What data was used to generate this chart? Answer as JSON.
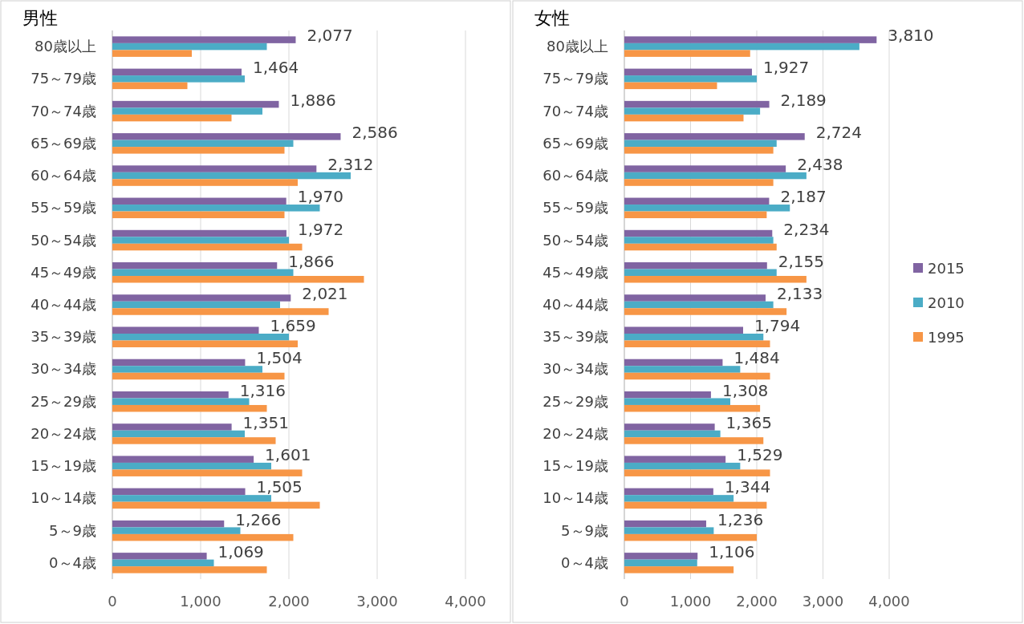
{
  "chart_data": [
    {
      "type": "bar",
      "orientation": "horizontal",
      "title": "男性",
      "categories": [
        "80歳以上",
        "75～79歳",
        "70～74歳",
        "65～69歳",
        "60～64歳",
        "55～59歳",
        "50～54歳",
        "45～49歳",
        "40～44歳",
        "35～39歳",
        "30～34歳",
        "25～29歳",
        "20～24歳",
        "15～19歳",
        "10～14歳",
        "5～9歳",
        "0～4歳"
      ],
      "series": [
        {
          "color": "#8064a2",
          "values": [
            2077,
            1464,
            1886,
            2586,
            2312,
            1970,
            1972,
            1866,
            2021,
            1659,
            1504,
            1316,
            1351,
            1601,
            1505,
            1266,
            1069
          ],
          "value_labels": [
            "2,077",
            "1,464",
            "1,886",
            "2,586",
            "2,312",
            "1,970",
            "1,972",
            "1,866",
            "2,021",
            "1,659",
            "1,504",
            "1,316",
            "1,351",
            "1,601",
            "1,505",
            "1,266",
            "1,069"
          ]
        },
        {
          "color": "#4bacc6",
          "values": [
            1750,
            1500,
            1700,
            2050,
            2700,
            2350,
            2000,
            2050,
            1900,
            2000,
            1700,
            1550,
            1500,
            1800,
            1800,
            1450,
            1150
          ]
        },
        {
          "color": "#f79646",
          "values": [
            900,
            850,
            1350,
            1950,
            2100,
            1950,
            2150,
            2850,
            2450,
            2100,
            1950,
            1750,
            1850,
            2150,
            2350,
            2050,
            1750
          ]
        }
      ],
      "xlim": [
        0,
        4000
      ],
      "xticks": [
        0,
        {
          "value": 1000,
          "label": "1,000"
        },
        {
          "value": 2000,
          "label": "2,000"
        },
        {
          "value": 3000,
          "label": "3,000"
        },
        {
          "value": 4000,
          "label": "4,000"
        }
      ],
      "grid": "x",
      "legend": false
    },
    {
      "type": "bar",
      "orientation": "horizontal",
      "title": "女性",
      "categories": [
        "80歳以上",
        "75～79歳",
        "70～74歳",
        "65～69歳",
        "60～64歳",
        "55～59歳",
        "50～54歳",
        "45～49歳",
        "40～44歳",
        "35～39歳",
        "30～34歳",
        "25～29歳",
        "20～24歳",
        "15～19歳",
        "10～14歳",
        "5～9歳",
        "0～4歳"
      ],
      "series": [
        {
          "name": "2015",
          "color": "#8064a2",
          "values": [
            3810,
            1927,
            2189,
            2724,
            2438,
            2187,
            2234,
            2155,
            2133,
            1794,
            1484,
            1308,
            1365,
            1529,
            1344,
            1236,
            1106
          ],
          "value_labels": [
            "3,810",
            "1,927",
            "2,189",
            "2,724",
            "2,438",
            "2,187",
            "2,234",
            "2,155",
            "2,133",
            "1,794",
            "1,484",
            "1,308",
            "1,365",
            "1,529",
            "1,344",
            "1,236",
            "1,106"
          ]
        },
        {
          "name": "2010",
          "color": "#4bacc6",
          "values": [
            3550,
            2000,
            2050,
            2300,
            2750,
            2500,
            2250,
            2300,
            2250,
            2100,
            1750,
            1600,
            1450,
            1750,
            1650,
            1350,
            1100
          ]
        },
        {
          "name": "1995",
          "color": "#f79646",
          "values": [
            1900,
            1400,
            1800,
            2250,
            2250,
            2150,
            2300,
            2750,
            2450,
            2200,
            2200,
            2050,
            2100,
            2200,
            2150,
            2000,
            1650
          ]
        }
      ],
      "xlim": [
        0,
        4000
      ],
      "xticks": [
        0,
        {
          "value": 1000,
          "label": "1,000"
        },
        {
          "value": 2000,
          "label": "2,000"
        },
        {
          "value": 3000,
          "label": "3,000"
        },
        {
          "value": 4000,
          "label": "4,000"
        }
      ],
      "grid": "x",
      "legend": "right"
    }
  ]
}
